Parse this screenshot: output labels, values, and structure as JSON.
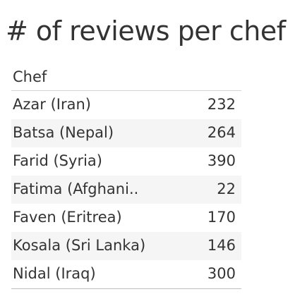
{
  "chart_data": {
    "type": "table",
    "title": "# of reviews per chef",
    "columns": [
      "Chef",
      ""
    ],
    "rows": [
      {
        "label": "Azar (Iran)",
        "value": 232
      },
      {
        "label": "Batsa (Nepal)",
        "value": 264
      },
      {
        "label": "Farid (Syria)",
        "value": 390
      },
      {
        "label": "Fatima (Afghani..",
        "value": 22
      },
      {
        "label": "Faven (Eritrea)",
        "value": 170
      },
      {
        "label": "Kosala (Sri Lanka)",
        "value": 146
      },
      {
        "label": "Nidal (Iraq)",
        "value": 300
      }
    ],
    "colors": {
      "text": "#333333",
      "row_band": "#f5f5f5",
      "divider": "#d4d4d4"
    }
  }
}
